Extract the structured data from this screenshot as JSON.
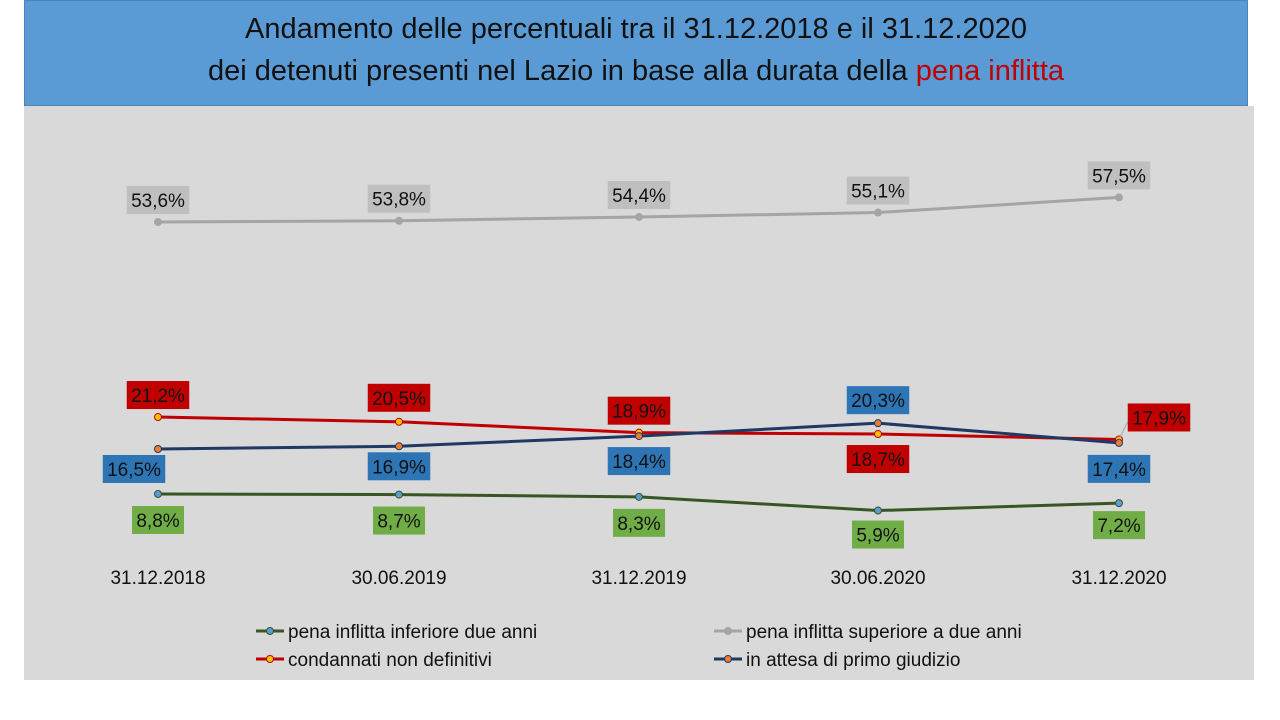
{
  "title": {
    "line1": "Andamento delle percentuali tra il 31.12.2018 e il 31.12.2020",
    "line2_prefix": "dei detenuti presenti nel Lazio in base alla durata della ",
    "line2_highlight": "pena inflitta"
  },
  "colors": {
    "title_bg": "#5b9bd5",
    "highlight": "#c00000",
    "plot_bg": "#d9d9d9"
  },
  "chart_data": {
    "type": "line",
    "categories": [
      "31.12.2018",
      "30.06.2019",
      "31.12.2019",
      "30.06.2020",
      "31.12.2020"
    ],
    "ylim": [
      0,
      60
    ],
    "grid": false,
    "legend_position": "bottom",
    "series": [
      {
        "name": "pena inflitta inferiore due anni",
        "values": [
          8.8,
          8.7,
          8.3,
          5.9,
          7.2
        ],
        "labels": [
          "8,8%",
          "8,7%",
          "8,3%",
          "5,9%",
          "7,2%"
        ],
        "color": "#375623",
        "marker": "#5b9bd5",
        "label_bg": "#70ad47",
        "label_fg": "#111111"
      },
      {
        "name": "pena inflitta superiore a due anni",
        "values": [
          53.6,
          53.8,
          54.4,
          55.1,
          57.5
        ],
        "labels": [
          "53,6%",
          "53,8%",
          "54,4%",
          "55,1%",
          "57,5%"
        ],
        "color": "#a5a5a5",
        "marker": "#a5a5a5",
        "label_bg": "#bfbfbf",
        "label_fg": "#111111"
      },
      {
        "name": "condannati non definitivi",
        "values": [
          21.2,
          20.5,
          18.9,
          18.7,
          17.9
        ],
        "labels": [
          "21,2%",
          "20,5%",
          "18,9%",
          "18,7%",
          "17,9%"
        ],
        "color": "#c00000",
        "marker": "#ffc000",
        "label_bg": "#c00000",
        "label_fg": "#111111"
      },
      {
        "name": "in attesa di primo giudizio",
        "values": [
          16.5,
          16.9,
          18.4,
          20.3,
          17.4
        ],
        "labels": [
          "16,5%",
          "16,9%",
          "18,4%",
          "20,3%",
          "17,4%"
        ],
        "color": "#1f3864",
        "marker": "#ed7d31",
        "label_bg": "#2e75b6",
        "label_fg": "#111111"
      }
    ]
  }
}
